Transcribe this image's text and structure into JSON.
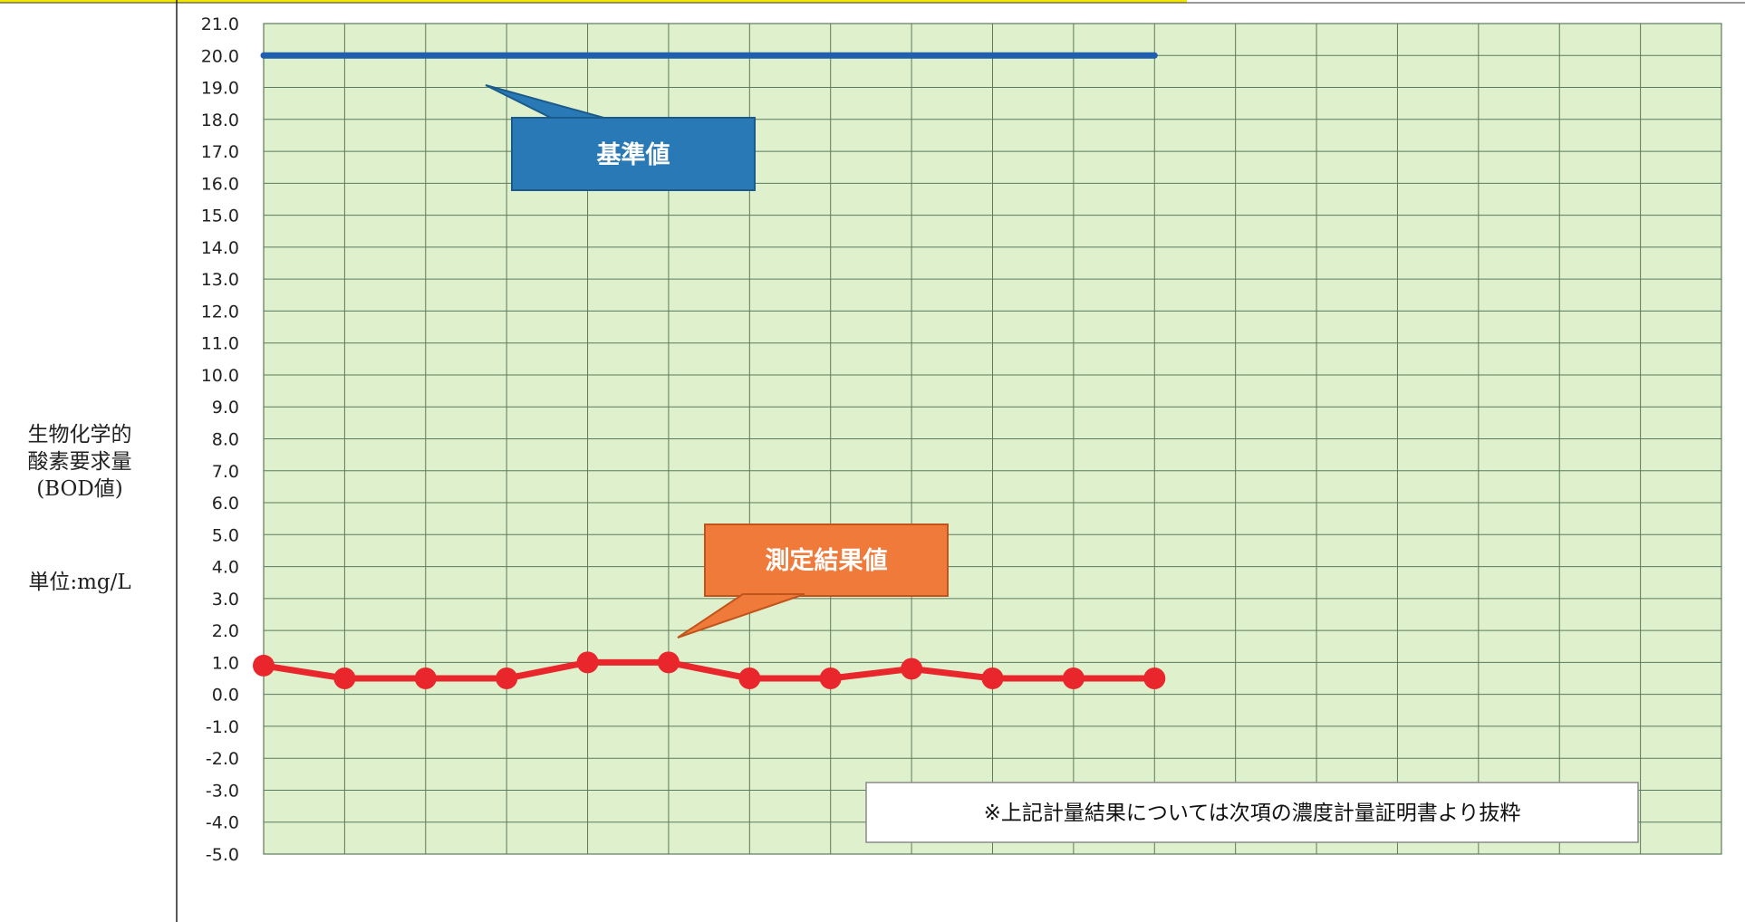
{
  "y_axis": {
    "label_lines": [
      "生物化学的",
      "酸素要求量",
      "(BOD値)"
    ],
    "unit_label": "単位:mg/L"
  },
  "callouts": {
    "standard": "基準値",
    "measured": "測定結果値"
  },
  "note": "※上記計量結果については次項の濃度計量証明書より抜粋",
  "colors": {
    "plot_background": "#dff0cc",
    "grid": "#5c7a5c",
    "standard_line": "#1f5fae",
    "standard_callout": "#2879b5",
    "measured_line": "#e8262b",
    "measured_callout": "#ef7a3a"
  },
  "chart_data": {
    "type": "line",
    "ylim": [
      -5.0,
      21.0
    ],
    "ytick_step": 1.0,
    "grid": true,
    "x_categories_count": 18,
    "series": [
      {
        "name": "基準値",
        "values": [
          20,
          20,
          20,
          20,
          20,
          20,
          20,
          20,
          20,
          20,
          20,
          20
        ]
      },
      {
        "name": "測定結果値",
        "values": [
          0.9,
          0.5,
          0.5,
          0.5,
          1.0,
          1.0,
          0.5,
          0.5,
          0.8,
          0.5,
          0.5,
          0.5
        ]
      }
    ]
  }
}
